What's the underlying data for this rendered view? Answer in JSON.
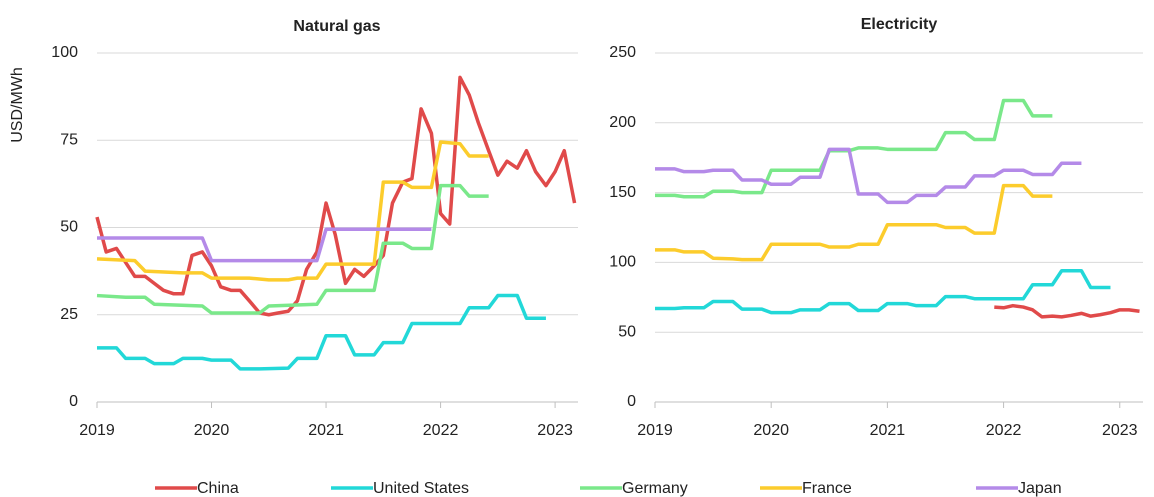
{
  "chart_data": [
    {
      "type": "line",
      "title": "Natural gas",
      "ylabel": "USD/MWh",
      "xlim": [
        2019,
        2023.2
      ],
      "xticks": [
        2019,
        2020,
        2021,
        2022,
        2023
      ],
      "ylim": [
        0,
        100
      ],
      "yticks": [
        0,
        25,
        50,
        75,
        100
      ],
      "grid": true,
      "series": [
        {
          "name": "China",
          "color": "#e04a4a",
          "x": [
            2019.0,
            2019.08,
            2019.17,
            2019.25,
            2019.33,
            2019.42,
            2019.5,
            2019.58,
            2019.67,
            2019.75,
            2019.83,
            2019.92,
            2020.0,
            2020.08,
            2020.17,
            2020.25,
            2020.33,
            2020.42,
            2020.5,
            2020.58,
            2020.67,
            2020.75,
            2020.83,
            2020.92,
            2021.0,
            2021.08,
            2021.17,
            2021.25,
            2021.33,
            2021.42,
            2021.5,
            2021.58,
            2021.67,
            2021.75,
            2021.83,
            2021.92,
            2022.0,
            2022.08,
            2022.17,
            2022.25,
            2022.33,
            2022.42,
            2022.5,
            2022.58,
            2022.67,
            2022.75,
            2022.83,
            2022.92,
            2023.0,
            2023.08,
            2023.17
          ],
          "values": [
            53,
            43,
            44,
            40,
            36,
            36,
            34,
            32,
            31,
            31,
            42,
            43,
            39,
            33,
            32,
            32,
            29,
            25.5,
            25,
            25.5,
            26,
            29,
            38,
            43,
            57,
            48,
            34,
            38,
            36,
            39,
            42,
            57,
            63,
            64,
            84,
            77,
            54,
            51,
            93,
            88,
            80,
            72,
            65,
            69,
            67,
            72,
            66,
            62,
            66,
            72,
            57
          ]
        },
        {
          "name": "United States",
          "color": "#22d8d8",
          "x": [
            2019.0,
            2019.17,
            2019.25,
            2019.42,
            2019.5,
            2019.67,
            2019.75,
            2019.92,
            2020.0,
            2020.17,
            2020.25,
            2020.42,
            2020.67,
            2020.75,
            2020.92,
            2021.0,
            2021.17,
            2021.25,
            2021.42,
            2021.5,
            2021.67,
            2021.75,
            2021.92,
            2022.17,
            2022.25,
            2022.42,
            2022.5,
            2022.67,
            2022.75,
            2022.92
          ],
          "values": [
            15.5,
            15.5,
            12.5,
            12.5,
            11,
            11,
            12.5,
            12.5,
            12,
            12,
            9.5,
            9.5,
            9.7,
            12.5,
            12.5,
            19,
            19,
            13.5,
            13.5,
            17,
            17,
            22.5,
            22.5,
            22.5,
            27,
            27,
            30.5,
            30.5,
            24,
            24
          ]
        },
        {
          "name": "Germany",
          "color": "#7ae88a",
          "x": [
            2019.0,
            2019.25,
            2019.42,
            2019.5,
            2019.92,
            2020.0,
            2020.42,
            2020.5,
            2020.92,
            2021.0,
            2021.42,
            2021.5,
            2021.67,
            2021.75,
            2021.92,
            2022.0,
            2022.17,
            2022.25,
            2022.42
          ],
          "values": [
            30.5,
            30,
            30,
            28,
            27.5,
            25.5,
            25.5,
            27.5,
            28,
            32,
            32,
            45.5,
            45.5,
            44,
            44,
            62,
            62,
            59,
            59
          ]
        },
        {
          "name": "France",
          "color": "#fccc2c",
          "x": [
            2019.0,
            2019.33,
            2019.42,
            2019.75,
            2019.92,
            2020.0,
            2020.33,
            2020.5,
            2020.67,
            2020.75,
            2020.92,
            2021.0,
            2021.33,
            2021.42,
            2021.5,
            2021.67,
            2021.75,
            2021.92,
            2022.0,
            2022.17,
            2022.25,
            2022.42
          ],
          "values": [
            41,
            40.5,
            37.5,
            37,
            37,
            35.5,
            35.5,
            35,
            35,
            35.5,
            35.5,
            39.5,
            39.5,
            39.5,
            63,
            63,
            61.5,
            61.5,
            74.5,
            74,
            70.5,
            70.5
          ]
        },
        {
          "name": "Japan",
          "color": "#b48ae8",
          "x": [
            2019.0,
            2019.92,
            2020.0,
            2020.92,
            2021.0,
            2021.92
          ],
          "values": [
            47,
            47,
            40.5,
            40.5,
            49.5,
            49.5
          ]
        }
      ]
    },
    {
      "type": "line",
      "title": "Electricity",
      "xlim": [
        2019,
        2023.2
      ],
      "xticks": [
        2019,
        2020,
        2021,
        2022,
        2023
      ],
      "ylim": [
        0,
        250
      ],
      "yticks": [
        0,
        50,
        100,
        150,
        200,
        250
      ],
      "grid": true,
      "series": [
        {
          "color": "#e04a4a",
          "x": [
            2021.92,
            2022.0,
            2022.08,
            2022.17,
            2022.25,
            2022.33,
            2022.42,
            2022.5,
            2022.58,
            2022.67,
            2022.75,
            2022.83,
            2022.92,
            2023.0,
            2023.08,
            2023.17
          ],
          "values": [
            68,
            67.5,
            69,
            68,
            66,
            61,
            61.5,
            61,
            62,
            63.5,
            61.5,
            62.5,
            64,
            66,
            66,
            65
          ]
        },
        {
          "color": "#22d8d8",
          "x": [
            2019.0,
            2019.17,
            2019.25,
            2019.42,
            2019.5,
            2019.67,
            2019.75,
            2019.92,
            2020.0,
            2020.17,
            2020.25,
            2020.42,
            2020.5,
            2020.67,
            2020.75,
            2020.92,
            2021.0,
            2021.17,
            2021.25,
            2021.42,
            2021.5,
            2021.67,
            2021.75,
            2021.92,
            2022.17,
            2022.25,
            2022.42,
            2022.5,
            2022.67,
            2022.75,
            2022.92
          ],
          "values": [
            67,
            67,
            67.5,
            67.5,
            72,
            72,
            66.5,
            66.5,
            64,
            64,
            66,
            66,
            70.5,
            70.5,
            65.5,
            65.5,
            70.5,
            70.5,
            69,
            69,
            75.5,
            75.5,
            74,
            74,
            74,
            84,
            84,
            94,
            94,
            82,
            82
          ]
        },
        {
          "color": "#7ae88a",
          "x": [
            2019.0,
            2019.17,
            2019.25,
            2019.42,
            2019.5,
            2019.67,
            2019.75,
            2019.92,
            2020.0,
            2020.42,
            2020.5,
            2020.67,
            2020.75,
            2020.92,
            2021.0,
            2021.42,
            2021.5,
            2021.67,
            2021.75,
            2021.92,
            2022.0,
            2022.17,
            2022.25,
            2022.42
          ],
          "values": [
            148,
            148,
            147,
            147,
            151,
            151,
            150,
            150,
            166,
            166,
            180,
            180,
            182,
            182,
            181,
            181,
            193,
            193,
            188,
            188,
            216,
            216,
            205,
            205
          ]
        },
        {
          "color": "#fccc2c",
          "x": [
            2019.0,
            2019.17,
            2019.25,
            2019.42,
            2019.5,
            2019.67,
            2019.75,
            2019.92,
            2020.0,
            2020.42,
            2020.5,
            2020.67,
            2020.75,
            2020.92,
            2021.0,
            2021.42,
            2021.5,
            2021.67,
            2021.75,
            2021.92,
            2022.0,
            2022.17,
            2022.25,
            2022.42
          ],
          "values": [
            109,
            109,
            107.5,
            107.5,
            103,
            102.5,
            102,
            102,
            113,
            113,
            111,
            111,
            113,
            113,
            127,
            127,
            125,
            125,
            121,
            121,
            155,
            155,
            147.5,
            147.5
          ]
        },
        {
          "color": "#b48ae8",
          "x": [
            2019.0,
            2019.17,
            2019.25,
            2019.42,
            2019.5,
            2019.67,
            2019.75,
            2019.92,
            2020.0,
            2020.17,
            2020.25,
            2020.42,
            2020.5,
            2020.67,
            2020.75,
            2020.92,
            2021.0,
            2021.17,
            2021.25,
            2021.42,
            2021.5,
            2021.67,
            2021.75,
            2021.92,
            2022.0,
            2022.17,
            2022.25,
            2022.42,
            2022.5,
            2022.67
          ],
          "values": [
            167,
            167,
            165,
            165,
            166,
            166,
            159,
            159,
            156,
            156,
            161,
            161,
            181,
            181,
            149,
            149,
            143,
            143,
            148,
            148,
            154,
            154,
            162,
            162,
            166,
            166,
            163,
            163,
            171,
            171
          ]
        }
      ]
    }
  ]
}
